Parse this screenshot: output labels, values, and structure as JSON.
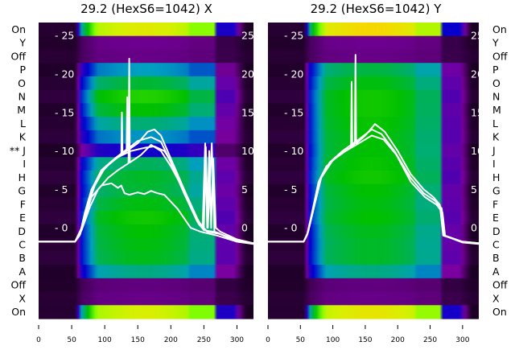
{
  "chart_data": [
    {
      "type": "heatmap",
      "title": "29.2 (HexS6=1042) X",
      "xlim": [
        0,
        325
      ],
      "ylim": [
        -11.8,
        26.7
      ],
      "xticks": [
        0,
        50,
        100,
        150,
        200,
        250,
        300
      ],
      "yticks": [
        0,
        5,
        10,
        15,
        20,
        25
      ],
      "row_labels": [
        "On",
        "Y",
        "Off",
        "P",
        "O",
        "N",
        "M",
        "L",
        "K",
        "** J",
        "I",
        "H",
        "G",
        "F",
        "E",
        "D",
        "C",
        "B",
        "A",
        "Off",
        "X",
        "On"
      ],
      "row_levels": [
        0.9,
        0.12,
        0.1,
        0.45,
        0.55,
        0.62,
        0.6,
        0.5,
        0.42,
        0.28,
        0.52,
        0.55,
        0.56,
        0.58,
        0.6,
        0.6,
        0.58,
        0.56,
        0.5,
        0.1,
        0.1,
        0.88
      ],
      "series": [
        {
          "name": "trace-1",
          "points": [
            [
              0,
              -1.8
            ],
            [
              55,
              -1.8
            ],
            [
              62,
              -1
            ],
            [
              70,
              2
            ],
            [
              80,
              5
            ],
            [
              95,
              7.2
            ],
            [
              110,
              8.6
            ],
            [
              125,
              9.5
            ],
            [
              126,
              15
            ],
            [
              127,
              9.6
            ],
            [
              150,
              11
            ],
            [
              165,
              12.5
            ],
            [
              175,
              12.8
            ],
            [
              185,
              12
            ],
            [
              200,
              9
            ],
            [
              220,
              5
            ],
            [
              240,
              1.2
            ],
            [
              248,
              0
            ],
            [
              252,
              11
            ],
            [
              255,
              0
            ],
            [
              258,
              10
            ],
            [
              261,
              0
            ],
            [
              264,
              9
            ],
            [
              268,
              0
            ],
            [
              275,
              -0.5
            ],
            [
              300,
              -1.5
            ],
            [
              325,
              -2
            ]
          ]
        },
        {
          "name": "trace-2",
          "points": [
            [
              0,
              -1.8
            ],
            [
              55,
              -1.8
            ],
            [
              63,
              -0.8
            ],
            [
              72,
              2.5
            ],
            [
              82,
              5.3
            ],
            [
              95,
              7.5
            ],
            [
              115,
              9
            ],
            [
              133,
              10.2
            ],
            [
              134,
              17
            ],
            [
              135,
              10.3
            ],
            [
              150,
              11.3
            ],
            [
              170,
              11.8
            ],
            [
              185,
              11.2
            ],
            [
              200,
              8.5
            ],
            [
              220,
              4.5
            ],
            [
              240,
              0.8
            ],
            [
              250,
              0
            ],
            [
              253,
              10.5
            ],
            [
              256,
              0
            ],
            [
              262,
              11
            ],
            [
              266,
              -0.5
            ],
            [
              280,
              -1
            ],
            [
              300,
              -1.8
            ],
            [
              325,
              -2
            ]
          ]
        },
        {
          "name": "trace-3",
          "points": [
            [
              0,
              -1.8
            ],
            [
              55,
              -1.8
            ],
            [
              64,
              -0.5
            ],
            [
              75,
              3
            ],
            [
              85,
              5.5
            ],
            [
              100,
              7.8
            ],
            [
              120,
              9.2
            ],
            [
              140,
              10
            ],
            [
              160,
              10.4
            ],
            [
              175,
              10.6
            ],
            [
              190,
              10
            ],
            [
              205,
              8
            ],
            [
              225,
              4
            ],
            [
              242,
              0.5
            ],
            [
              250,
              -0.3
            ],
            [
              270,
              -0.6
            ],
            [
              300,
              -1.8
            ],
            [
              325,
              -2.1
            ]
          ]
        },
        {
          "name": "trace-4",
          "points": [
            [
              0,
              -1.8
            ],
            [
              55,
              -1.8
            ],
            [
              65,
              -0.3
            ],
            [
              78,
              2.8
            ],
            [
              90,
              5
            ],
            [
              105,
              6.5
            ],
            [
              120,
              7.5
            ],
            [
              136,
              8.4
            ],
            [
              137,
              22
            ],
            [
              138,
              8.5
            ],
            [
              155,
              9.5
            ],
            [
              170,
              10.8
            ],
            [
              185,
              10
            ],
            [
              200,
              8
            ],
            [
              220,
              4.8
            ],
            [
              240,
              1
            ],
            [
              255,
              -0.5
            ],
            [
              275,
              -0.8
            ],
            [
              300,
              -1.6
            ],
            [
              325,
              -2
            ]
          ]
        },
        {
          "name": "trace-5",
          "points": [
            [
              0,
              -1.8
            ],
            [
              55,
              -1.8
            ],
            [
              65,
              0
            ],
            [
              80,
              4
            ],
            [
              95,
              5.5
            ],
            [
              110,
              5.8
            ],
            [
              120,
              5.2
            ],
            [
              125,
              5.5
            ],
            [
              130,
              4.5
            ],
            [
              137,
              4.3
            ],
            [
              150,
              4.6
            ],
            [
              160,
              4.4
            ],
            [
              170,
              4.8
            ],
            [
              180,
              4.5
            ],
            [
              190,
              4.3
            ],
            [
              210,
              2.5
            ],
            [
              230,
              0
            ],
            [
              245,
              -0.5
            ],
            [
              270,
              -1
            ],
            [
              300,
              -1.8
            ],
            [
              325,
              -2
            ]
          ]
        }
      ]
    },
    {
      "type": "heatmap",
      "title": "29.2 (HexS6=1042) Y",
      "xlim": [
        0,
        325
      ],
      "ylim": [
        -11.8,
        26.7
      ],
      "xticks": [
        0,
        50,
        100,
        150,
        200,
        250,
        300
      ],
      "yticks": [
        0,
        5,
        10,
        15,
        20,
        25
      ],
      "row_labels": [
        "On",
        "Y",
        "Off",
        "P",
        "O",
        "N",
        "M",
        "L",
        "K",
        "J",
        "I",
        "H",
        "G",
        "F",
        "E",
        "D",
        "C",
        "B",
        "A",
        "Off",
        "X",
        "On"
      ],
      "row_levels": [
        0.97,
        0.12,
        0.1,
        0.55,
        0.58,
        0.6,
        0.62,
        0.6,
        0.58,
        0.6,
        0.6,
        0.6,
        0.6,
        0.58,
        0.58,
        0.58,
        0.56,
        0.55,
        0.5,
        0.1,
        0.1,
        0.92
      ],
      "series": [
        {
          "name": "trace-1",
          "points": [
            [
              0,
              -1.8
            ],
            [
              55,
              -1.8
            ],
            [
              60,
              -1
            ],
            [
              68,
              2
            ],
            [
              78,
              6
            ],
            [
              90,
              8
            ],
            [
              110,
              9.5
            ],
            [
              128,
              10.5
            ],
            [
              129,
              19
            ],
            [
              130,
              10.6
            ],
            [
              134,
              11
            ],
            [
              135,
              22.5
            ],
            [
              136,
              11
            ],
            [
              150,
              12
            ],
            [
              165,
              13.5
            ],
            [
              180,
              12.5
            ],
            [
              200,
              10
            ],
            [
              220,
              7
            ],
            [
              240,
              5
            ],
            [
              255,
              4
            ],
            [
              265,
              3
            ],
            [
              270,
              -1
            ],
            [
              300,
              -1.8
            ],
            [
              325,
              -2
            ]
          ]
        },
        {
          "name": "trace-2",
          "points": [
            [
              0,
              -1.8
            ],
            [
              55,
              -1.8
            ],
            [
              61,
              -0.8
            ],
            [
              70,
              2.5
            ],
            [
              80,
              6.2
            ],
            [
              95,
              8.5
            ],
            [
              115,
              10
            ],
            [
              140,
              11.5
            ],
            [
              160,
              12.8
            ],
            [
              175,
              12.2
            ],
            [
              195,
              10
            ],
            [
              220,
              6.5
            ],
            [
              240,
              4.5
            ],
            [
              258,
              3.5
            ],
            [
              268,
              2.5
            ],
            [
              272,
              -1
            ],
            [
              300,
              -1.9
            ],
            [
              325,
              -2.1
            ]
          ]
        },
        {
          "name": "trace-3",
          "points": [
            [
              0,
              -1.8
            ],
            [
              55,
              -1.8
            ],
            [
              62,
              -0.5
            ],
            [
              72,
              3
            ],
            [
              82,
              6.5
            ],
            [
              100,
              8.8
            ],
            [
              120,
              10
            ],
            [
              140,
              11
            ],
            [
              160,
              12
            ],
            [
              178,
              11.5
            ],
            [
              198,
              9.5
            ],
            [
              220,
              6
            ],
            [
              242,
              4
            ],
            [
              260,
              3
            ],
            [
              269,
              2
            ],
            [
              273,
              -1
            ],
            [
              300,
              -1.8
            ],
            [
              325,
              -2
            ]
          ]
        }
      ]
    }
  ]
}
